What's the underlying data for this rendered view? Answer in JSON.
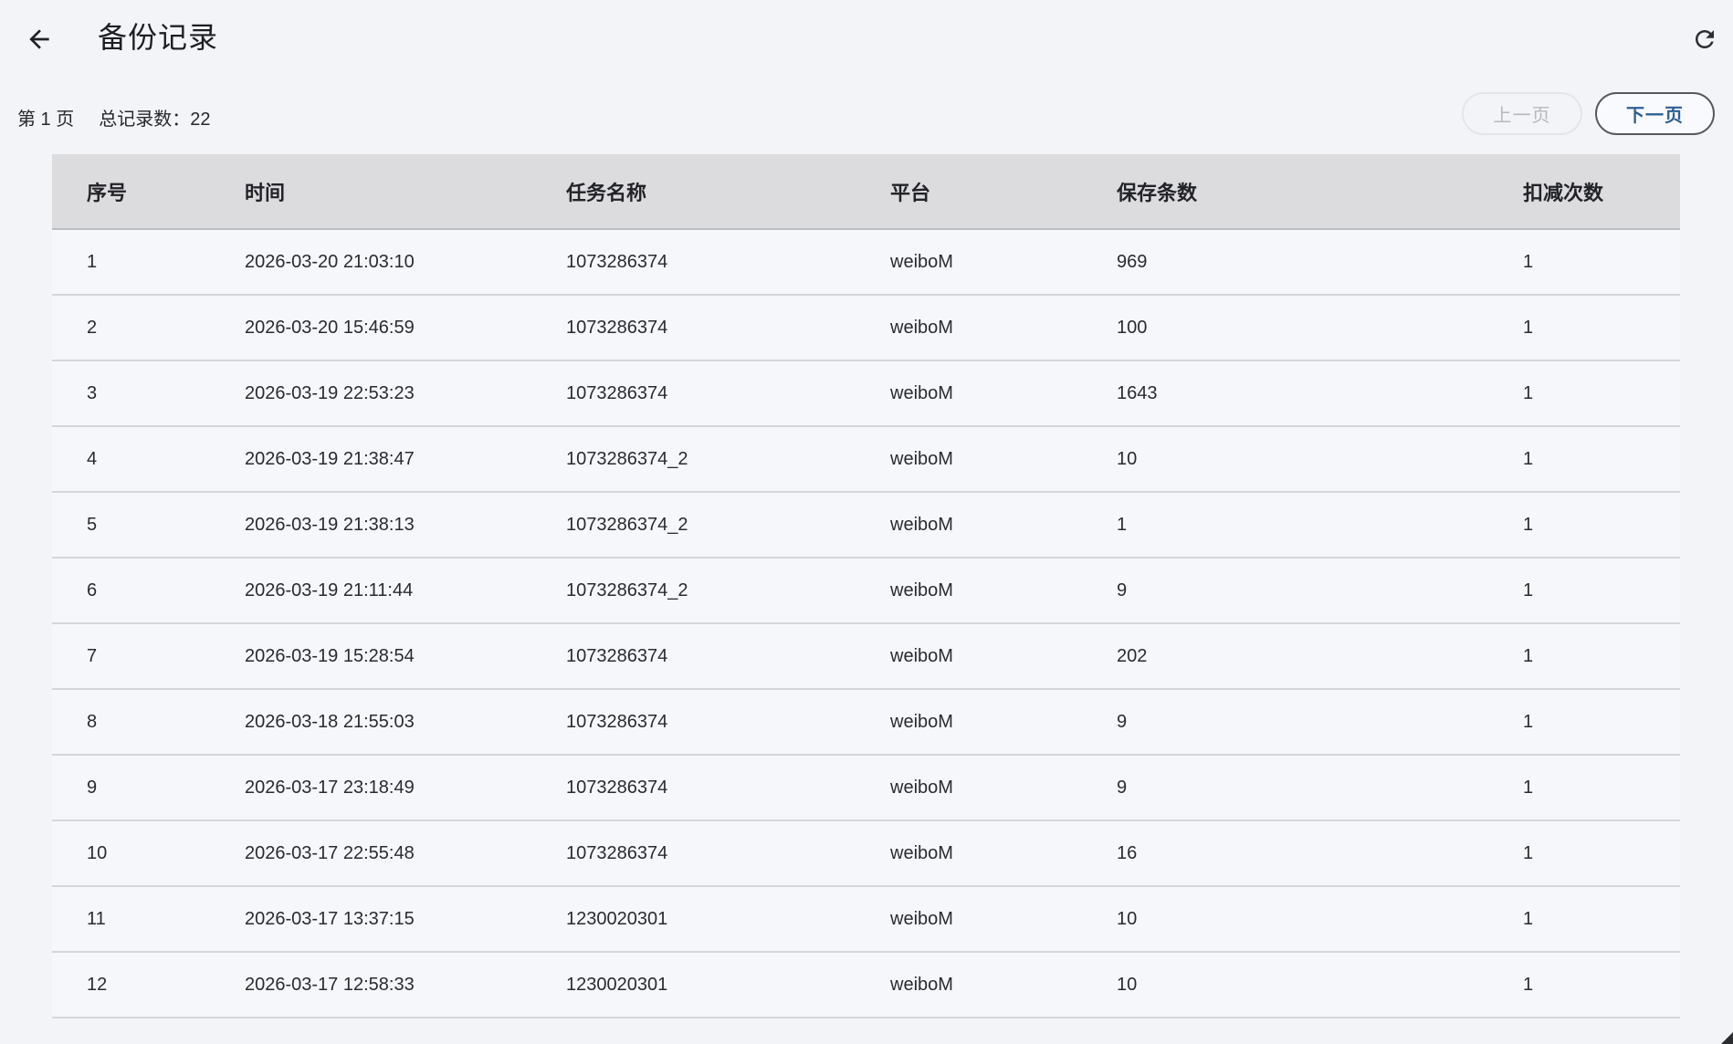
{
  "header": {
    "title": "备份记录",
    "back_icon": "arrow-left",
    "refresh_icon": "refresh"
  },
  "pagination": {
    "page_indicator": "第 1 页",
    "total_records": "总记录数：22",
    "prev_button": "上一页",
    "next_button": "下一页",
    "prev_enabled": false,
    "next_enabled": true
  },
  "table": {
    "columns": [
      "序号",
      "时间",
      "任务名称",
      "平台",
      "保存条数",
      "扣减次数"
    ],
    "rows": [
      [
        "1",
        "2026-03-20 21:03:10",
        "1073286374",
        "weiboM",
        "969",
        "1"
      ],
      [
        "2",
        "2026-03-20 15:46:59",
        "1073286374",
        "weiboM",
        "100",
        "1"
      ],
      [
        "3",
        "2026-03-19 22:53:23",
        "1073286374",
        "weiboM",
        "1643",
        "1"
      ],
      [
        "4",
        "2026-03-19 21:38:47",
        "1073286374_2",
        "weiboM",
        "10",
        "1"
      ],
      [
        "5",
        "2026-03-19 21:38:13",
        "1073286374_2",
        "weiboM",
        "1",
        "1"
      ],
      [
        "6",
        "2026-03-19 21:11:44",
        "1073286374_2",
        "weiboM",
        "9",
        "1"
      ],
      [
        "7",
        "2026-03-19 15:28:54",
        "1073286374",
        "weiboM",
        "202",
        "1"
      ],
      [
        "8",
        "2026-03-18 21:55:03",
        "1073286374",
        "weiboM",
        "9",
        "1"
      ],
      [
        "9",
        "2026-03-17 23:18:49",
        "1073286374",
        "weiboM",
        "9",
        "1"
      ],
      [
        "10",
        "2026-03-17 22:55:48",
        "1073286374",
        "weiboM",
        "16",
        "1"
      ],
      [
        "11",
        "2026-03-17 13:37:15",
        "1230020301",
        "weiboM",
        "10",
        "1"
      ],
      [
        "12",
        "2026-03-17 12:58:33",
        "1230020301",
        "weiboM",
        "10",
        "1"
      ]
    ]
  },
  "colors": {
    "page_bg": "#f3f4f8",
    "row_bg": "#f6f7fa",
    "table_header_bg": "#dcdcdf",
    "divider": "#d5d6d9",
    "text": "#26272b",
    "accent_blue": "#2e5f95",
    "disabled_text": "#b6b8bd",
    "next_border": "#56585d"
  }
}
